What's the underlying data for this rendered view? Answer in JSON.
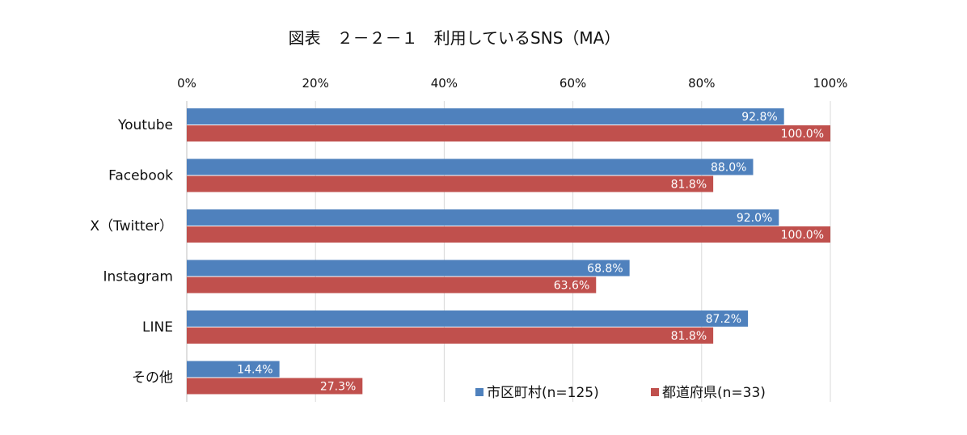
{
  "chart_data": {
    "type": "bar",
    "orientation": "horizontal",
    "title": "図表　２－２－１　利用しているSNS（MA）",
    "categories": [
      "Youtube",
      "Facebook",
      "X（Twitter）",
      "Instagram",
      "LINE",
      "その他"
    ],
    "series": [
      {
        "name": "市区町村(n=125)",
        "color": "#4f81bd",
        "values": [
          92.8,
          88.0,
          92.0,
          68.8,
          87.2,
          14.4
        ],
        "labels": [
          "92.8%",
          "88.0%",
          "92.0%",
          "68.8%",
          "87.2%",
          "14.4%"
        ]
      },
      {
        "name": "都道府県(n=33)",
        "color": "#c0504d",
        "values": [
          100.0,
          81.8,
          100.0,
          63.6,
          81.8,
          27.3
        ],
        "labels": [
          "100.0%",
          "81.8%",
          "100.0%",
          "63.6%",
          "81.8%",
          "27.3%"
        ]
      }
    ],
    "xlim": [
      0,
      100
    ],
    "xticks": [
      0,
      20,
      40,
      60,
      80,
      100
    ],
    "xtick_labels": [
      "0%",
      "20%",
      "40%",
      "60%",
      "80%",
      "100%"
    ],
    "x_axis_position": "top",
    "grid": true,
    "legend_position": "bottom-right"
  }
}
